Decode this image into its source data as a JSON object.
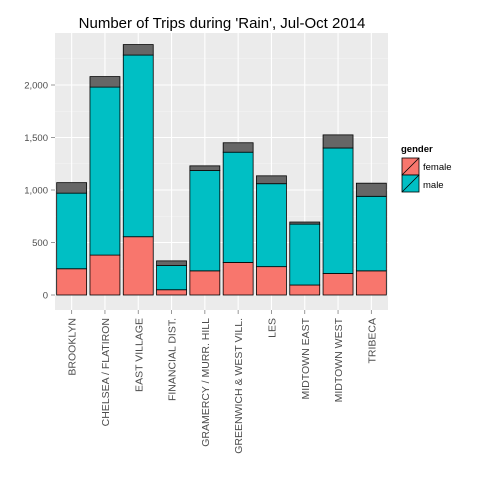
{
  "chart_data": {
    "type": "bar",
    "stacked": true,
    "title": "Number of Trips during 'Rain', Jul-Oct 2014",
    "xlabel": "",
    "ylabel": "",
    "ylim": [
      0,
      2500
    ],
    "yticks": [
      0,
      500,
      1000,
      1500,
      2000
    ],
    "ytick_labels": [
      "0",
      "500",
      "1,000",
      "1,500",
      "2,000"
    ],
    "grid": true,
    "legend": {
      "title": "gender",
      "position": "right"
    },
    "categories": [
      "BROOKLYN",
      "CHELSEA / FLATIRON",
      "EAST VILLAGE",
      "FINANCIAL DIST.",
      "GRAMERCY / MURR. HILL",
      "GREENWICH & WEST VILL.",
      "LES",
      "MIDTOWN EAST",
      "MIDTOWN WEST",
      "TRIBECA"
    ],
    "series": [
      {
        "name": "female",
        "color": "#F8766D",
        "values": [
          250,
          380,
          555,
          50,
          230,
          310,
          270,
          95,
          205,
          230
        ]
      },
      {
        "name": "male",
        "color": "#00BFC4",
        "values": [
          720,
          1600,
          1730,
          230,
          955,
          1050,
          790,
          580,
          1195,
          710
        ]
      },
      {
        "name": "",
        "color": "#666666",
        "values": [
          100,
          100,
          100,
          45,
          45,
          90,
          75,
          20,
          125,
          125
        ]
      }
    ]
  },
  "colors": {
    "panel_background": "#EBEBEB",
    "grid_major": "#FFFFFF",
    "grid_minor": "#F5F5F5",
    "bar_outline": "#000000"
  }
}
